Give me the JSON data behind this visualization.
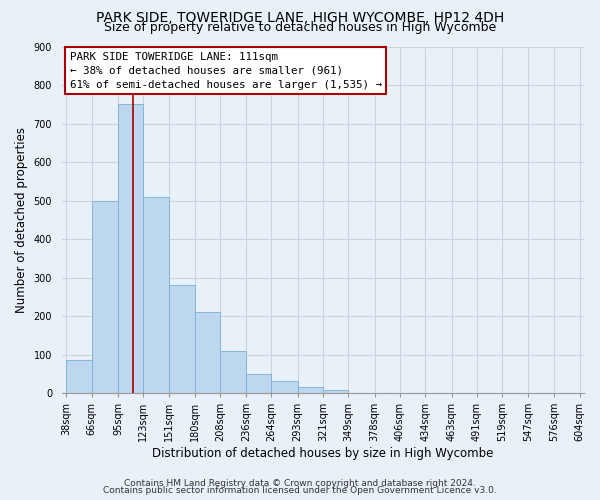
{
  "title": "PARK SIDE, TOWERIDGE LANE, HIGH WYCOMBE, HP12 4DH",
  "subtitle": "Size of property relative to detached houses in High Wycombe",
  "xlabel": "Distribution of detached houses by size in High Wycombe",
  "ylabel": "Number of detached properties",
  "bar_edges": [
    38,
    66,
    95,
    123,
    151,
    180,
    208,
    236,
    264,
    293,
    321,
    349,
    378,
    406,
    434,
    463,
    491,
    519,
    547,
    576,
    604
  ],
  "bar_heights": [
    85,
    500,
    750,
    510,
    280,
    210,
    108,
    50,
    30,
    15,
    8,
    0,
    0,
    0,
    0,
    0,
    0,
    0,
    0,
    0
  ],
  "bar_color": "#bdd7ee",
  "bar_edge_color": "#7ab0d4",
  "vline_x": 111,
  "vline_color": "#aa0000",
  "annotation_title": "PARK SIDE TOWERIDGE LANE: 111sqm",
  "annotation_line1": "← 38% of detached houses are smaller (961)",
  "annotation_line2": "61% of semi-detached houses are larger (1,535) →",
  "annotation_box_color": "#ffffff",
  "annotation_box_edge": "#aa0000",
  "ylim": [
    0,
    900
  ],
  "yticks": [
    0,
    100,
    200,
    300,
    400,
    500,
    600,
    700,
    800,
    900
  ],
  "xtick_labels": [
    "38sqm",
    "66sqm",
    "95sqm",
    "123sqm",
    "151sqm",
    "180sqm",
    "208sqm",
    "236sqm",
    "264sqm",
    "293sqm",
    "321sqm",
    "349sqm",
    "378sqm",
    "406sqm",
    "434sqm",
    "463sqm",
    "491sqm",
    "519sqm",
    "547sqm",
    "576sqm",
    "604sqm"
  ],
  "footnote1": "Contains HM Land Registry data © Crown copyright and database right 2024.",
  "footnote2": "Contains public sector information licensed under the Open Government Licence v3.0.",
  "bg_color": "#e8f0f8",
  "plot_bg_color": "#e8f0f8",
  "grid_color": "#c8d4e0",
  "title_fontsize": 10,
  "subtitle_fontsize": 9,
  "axis_label_fontsize": 8.5,
  "tick_fontsize": 7,
  "annotation_fontsize": 7.8,
  "footnote_fontsize": 6.5
}
